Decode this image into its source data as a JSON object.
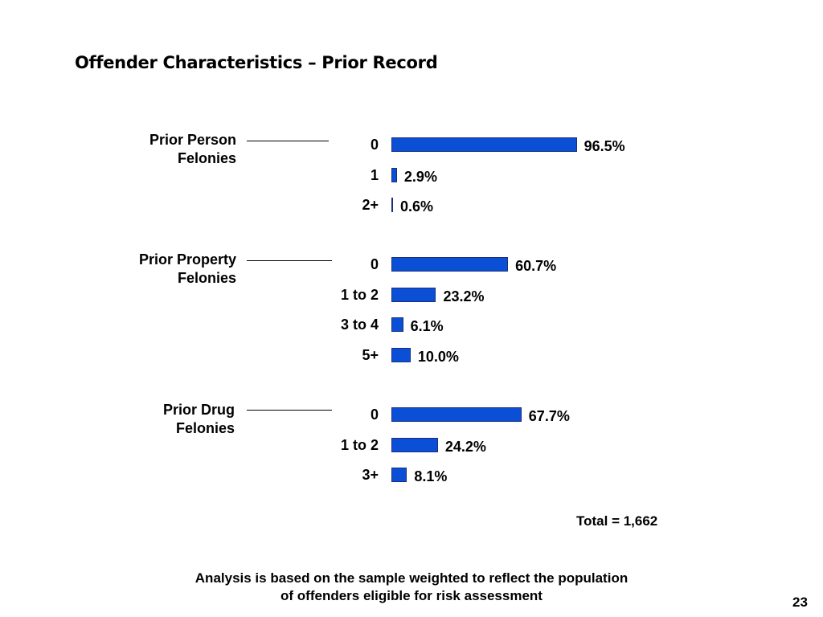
{
  "slide": {
    "title": "Offender Characteristics – Prior Record",
    "total": "Total = 1,662",
    "note_line1": "Analysis is based on the sample weighted to reflect the population",
    "note_line2": "of offenders eligible for risk assessment",
    "page_number": "23"
  },
  "chart_data": {
    "type": "bar",
    "orientation": "horizontal",
    "xlim": [
      0,
      100
    ],
    "unit": "%",
    "bar_color": "#0a4fd6",
    "groups": [
      {
        "label_line1": "Prior Person",
        "label_line2": "Felonies",
        "categories": [
          "0",
          "1",
          "2+"
        ],
        "values": [
          96.5,
          2.9,
          0.6
        ],
        "value_labels": [
          "96.5%",
          "2.9%",
          "0.6%"
        ]
      },
      {
        "label_line1": "Prior Property",
        "label_line2": "Felonies",
        "categories": [
          "0",
          "1 to 2",
          "3 to 4",
          "5+"
        ],
        "values": [
          60.7,
          23.2,
          6.1,
          10.0
        ],
        "value_labels": [
          "60.7%",
          "23.2%",
          "6.1%",
          "10.0%"
        ]
      },
      {
        "label_line1": "Prior Drug",
        "label_line2": "Felonies",
        "categories": [
          "0",
          "1 to 2",
          "3+"
        ],
        "values": [
          67.7,
          24.2,
          8.1
        ],
        "value_labels": [
          "67.7%",
          "24.2%",
          "8.1%"
        ]
      }
    ]
  }
}
